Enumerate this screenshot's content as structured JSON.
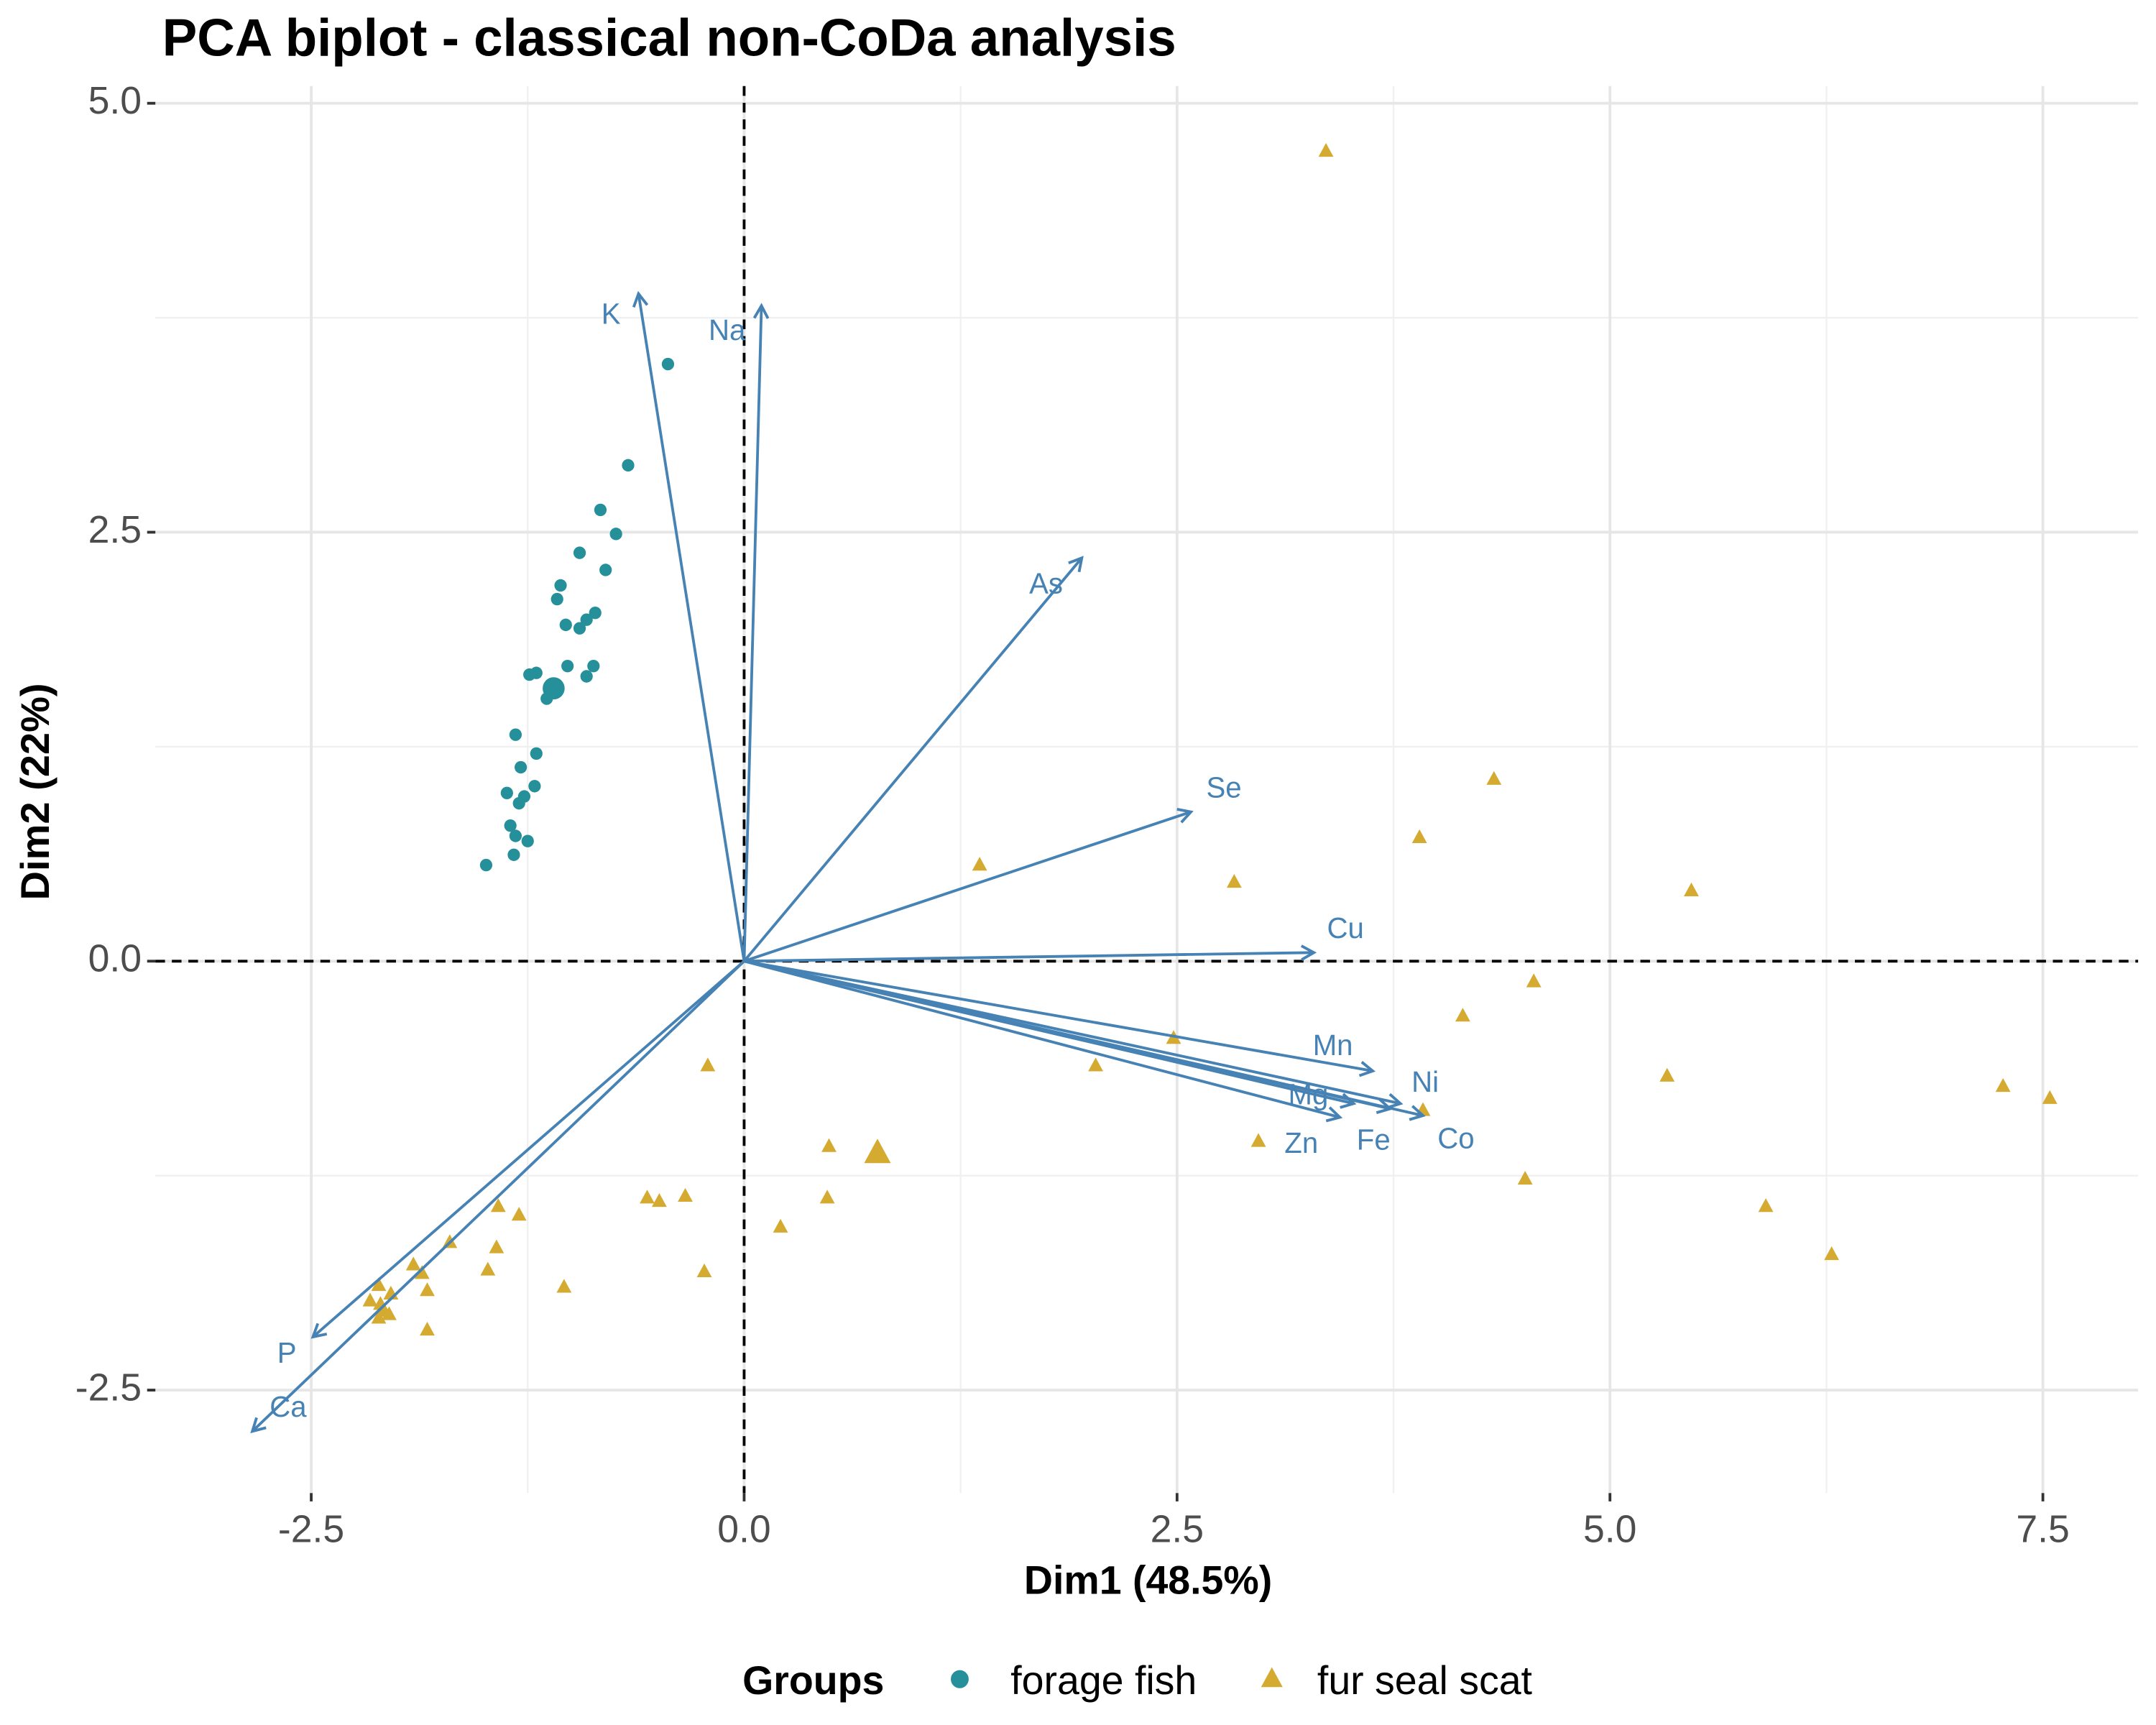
{
  "chart_data": {
    "type": "biplot",
    "title": "PCA biplot - classical non-CoDa analysis",
    "x_label": "Dim1 (48.5%)",
    "y_label": "Dim2 (22%)",
    "xlim": [
      -3.4,
      8.05
    ],
    "ylim": [
      -3.1,
      5.1
    ],
    "xticks": [
      -2.5,
      {
        "value": 0,
        "label": "0.0"
      },
      2.5,
      {
        "value": 5,
        "label": "5.0"
      },
      7.5
    ],
    "yticks": [
      -2.5,
      {
        "value": 0,
        "label": "0.0"
      },
      2.5,
      {
        "value": 5,
        "label": "5.0"
      }
    ],
    "grid": true,
    "legend_title": "Groups",
    "legend_position": "bottom",
    "arrow_color": "#4682b4",
    "series": [
      {
        "name": "forage fish",
        "color": "#25909a",
        "marker": "circle",
        "x": [
          -0.44,
          -0.67,
          -0.83,
          -0.74,
          -0.95,
          -0.8,
          -1.06,
          -1.08,
          -0.86,
          -0.91,
          -1.03,
          -0.95,
          -0.87,
          -1.02,
          -0.91,
          -1.2,
          -1.24,
          -1.14,
          -1.32,
          -1.2,
          -1.29,
          -1.21,
          -1.37,
          -1.27,
          -1.3,
          -1.35,
          -1.32,
          -1.25,
          -1.33,
          -1.49
        ],
        "values": [
          3.48,
          2.89,
          2.63,
          2.49,
          2.38,
          2.28,
          2.19,
          2.11,
          2.03,
          1.99,
          1.96,
          1.94,
          1.72,
          1.72,
          1.66,
          1.68,
          1.67,
          1.53,
          1.32,
          1.21,
          1.13,
          1.02,
          0.98,
          0.96,
          0.92,
          0.79,
          0.73,
          0.7,
          0.62,
          0.56
        ],
        "centroid": [
          -1.1,
          1.59
        ]
      },
      {
        "name": "fur seal scat",
        "color": "#d4ab30",
        "marker": "triangle",
        "x": [
          3.36,
          4.33,
          3.9,
          1.36,
          2.83,
          5.47,
          4.56,
          4.15,
          2.48,
          -0.21,
          2.03,
          5.33,
          7.27,
          7.54,
          3.92,
          2.97,
          0.49,
          4.51,
          -0.56,
          -0.49,
          -0.34,
          0.48,
          5.9,
          -1.42,
          -1.3,
          0.21,
          -1.7,
          -1.43,
          6.28,
          -1.91,
          -1.48,
          -0.23,
          -1.86,
          -1.04,
          -2.11,
          -1.83,
          -2.04,
          -2.16,
          -2.1,
          -2.08,
          -2.05,
          -2.11,
          -1.83
        ],
        "values": [
          4.72,
          1.06,
          0.72,
          0.56,
          0.46,
          0.41,
          -0.12,
          -0.32,
          -0.45,
          -0.61,
          -0.61,
          -0.67,
          -0.73,
          -0.8,
          -0.87,
          -1.05,
          -1.08,
          -1.27,
          -1.38,
          -1.4,
          -1.37,
          -1.38,
          -1.43,
          -1.43,
          -1.48,
          -1.55,
          -1.64,
          -1.67,
          -1.71,
          -1.77,
          -1.8,
          -1.81,
          -1.82,
          -1.9,
          -1.89,
          -1.92,
          -1.94,
          -1.98,
          -2.0,
          -2.04,
          -2.06,
          -2.08,
          -2.15
        ],
        "centroid": [
          0.77,
          -1.12
        ]
      }
    ],
    "arrows": [
      {
        "label": "K",
        "x": -0.61,
        "y": 3.89
      },
      {
        "label": "Na",
        "x": 0.1,
        "y": 3.82
      },
      {
        "label": "As",
        "x": 1.95,
        "y": 2.35
      },
      {
        "label": "Se",
        "x": 2.58,
        "y": 0.87
      },
      {
        "label": "Cu",
        "x": 3.29,
        "y": 0.05
      },
      {
        "label": "Mn",
        "x": 3.63,
        "y": -0.64
      },
      {
        "label": "Ni",
        "x": 3.79,
        "y": -0.83
      },
      {
        "label": "Co",
        "x": 3.92,
        "y": -0.9
      },
      {
        "label": "Fe",
        "x": 3.73,
        "y": -0.86
      },
      {
        "label": "Mg",
        "x": 3.52,
        "y": -0.83
      },
      {
        "label": "Zn",
        "x": 3.44,
        "y": -0.91
      },
      {
        "label": "P",
        "x": -2.49,
        "y": -2.19
      },
      {
        "label": "Ca",
        "x": -2.84,
        "y": -2.74
      }
    ]
  }
}
